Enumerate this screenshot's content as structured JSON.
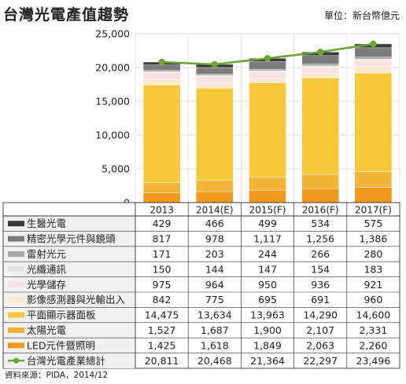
{
  "header": {
    "title": "台灣光電產值趨勢",
    "unit": "單位：新台幣億元"
  },
  "footer": {
    "source": "資料來源：PIDA，2014/12"
  },
  "chart_data": {
    "type": "bar",
    "stacked": true,
    "title": "台灣光電產值趨勢",
    "unit": "單位：新台幣億元",
    "categories": [
      "2013",
      "2014(E)",
      "2015(F)",
      "2016(F)",
      "2017(F)"
    ],
    "ylim": [
      0,
      25000
    ],
    "yticks": [
      "0",
      "5,000",
      "10,000",
      "15,000",
      "20,000",
      "25,000"
    ],
    "grid": true,
    "series": [
      {
        "name": "生醫光電",
        "type": "bar",
        "color": "#3a3a3a",
        "values": [
          429,
          466,
          499,
          534,
          575
        ],
        "labels": [
          "429",
          "466",
          "499",
          "534",
          "575"
        ]
      },
      {
        "name": "精密光學元件與鏡頭",
        "type": "bar",
        "color": "#7c7c7c",
        "values": [
          817,
          978,
          1117,
          1256,
          1386
        ],
        "labels": [
          "817",
          "978",
          "1,117",
          "1,256",
          "1,386"
        ]
      },
      {
        "name": "雷射光元",
        "type": "bar",
        "color": "#a9a9a9",
        "values": [
          171,
          203,
          244,
          266,
          280
        ],
        "labels": [
          "171",
          "203",
          "244",
          "266",
          "280"
        ]
      },
      {
        "name": "光纖通訊",
        "type": "bar",
        "color": "#e3e3e3",
        "values": [
          150,
          144,
          147,
          154,
          183
        ],
        "labels": [
          "150",
          "144",
          "147",
          "154",
          "183"
        ]
      },
      {
        "name": "光學儲存",
        "type": "bar",
        "color": "#f7e1e1",
        "values": [
          975,
          964,
          950,
          936,
          921
        ],
        "labels": [
          "975",
          "964",
          "950",
          "936",
          "921"
        ]
      },
      {
        "name": "影像感測器與光輸出入",
        "type": "bar",
        "color": "#f8e9d0",
        "values": [
          842,
          775,
          695,
          691,
          960
        ],
        "labels": [
          "842",
          "775",
          "695",
          "691",
          "960"
        ]
      },
      {
        "name": "平面顯示器面板",
        "type": "bar",
        "color": "#f6c93d",
        "values": [
          14475,
          13634,
          13963,
          14290,
          14600
        ],
        "labels": [
          "14,475",
          "13,634",
          "13,963",
          "14,290",
          "14,600"
        ]
      },
      {
        "name": "太陽光電",
        "type": "bar",
        "color": "#f3b43a",
        "values": [
          1527,
          1687,
          1900,
          2107,
          2331
        ],
        "labels": [
          "1,527",
          "1,687",
          "1,900",
          "2,107",
          "2,331"
        ]
      },
      {
        "name": "LED元件暨照明",
        "type": "bar",
        "color": "#ef9a1c",
        "values": [
          1425,
          1618,
          1849,
          2063,
          2260
        ],
        "labels": [
          "1,425",
          "1,618",
          "1,849",
          "2,063",
          "2,260"
        ]
      },
      {
        "name": "台灣光電產業總計",
        "type": "line",
        "color": "#6aa533",
        "values": [
          20811,
          20468,
          21364,
          22297,
          23496
        ],
        "labels": [
          "20,811",
          "20,468",
          "21,364",
          "22,297",
          "23,496"
        ]
      }
    ]
  }
}
